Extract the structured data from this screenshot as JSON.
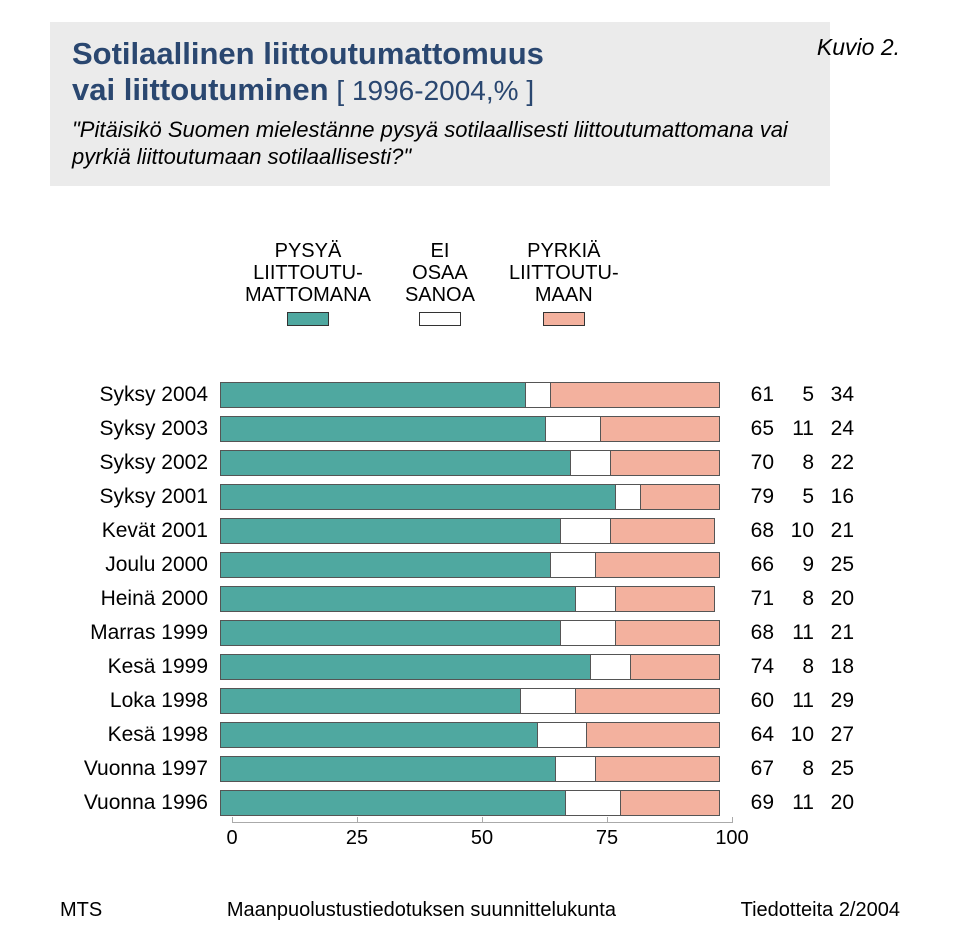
{
  "header": {
    "title_line1": "Sotilaallinen liittoutumattomuus",
    "title_line2_bold": "vai liittoutuminen",
    "title_line2_suffix": " [ 1996-2004,% ]",
    "question": "\"Pitäisikö Suomen mielestänne pysyä sotilaallisesti liittoutumattomana vai pyrkiä liittoutumaan sotilaallisesti?\"",
    "figure_label": "Kuvio 2.",
    "header_bg": "#ebebeb",
    "title_color": "#2a4770"
  },
  "legend": {
    "items": [
      {
        "label": "PYSYÄ\nLIITTOUTU-\nMATTOMANA",
        "color": "#4fa8a0",
        "border": "#333"
      },
      {
        "label": "EI\nOSAA\nSANOA",
        "color": "#ffffff",
        "border": "#333"
      },
      {
        "label": "PYRKIÄ\nLIITTOUTU-\nMAAN",
        "color": "#f3b19e",
        "border": "#333"
      }
    ]
  },
  "chart": {
    "type": "stacked-bar-horizontal",
    "colors": [
      "#4fa8a0",
      "#ffffff",
      "#f3b19e"
    ],
    "segment_border": "#555",
    "xlim": [
      0,
      100
    ],
    "ticks": [
      0,
      25,
      50,
      75,
      100
    ],
    "label_fontsize": 21,
    "rows": [
      {
        "label": "Syksy 2004",
        "values": [
          61,
          5,
          34
        ]
      },
      {
        "label": "Syksy 2003",
        "values": [
          65,
          11,
          24
        ]
      },
      {
        "label": "Syksy 2002",
        "values": [
          70,
          8,
          22
        ]
      },
      {
        "label": "Syksy 2001",
        "values": [
          79,
          5,
          16
        ]
      },
      {
        "label": "Kevät 2001",
        "values": [
          68,
          10,
          21
        ]
      },
      {
        "label": "Joulu 2000",
        "values": [
          66,
          9,
          25
        ]
      },
      {
        "label": "Heinä 2000",
        "values": [
          71,
          8,
          20
        ]
      },
      {
        "label": "Marras 1999",
        "values": [
          68,
          11,
          21
        ]
      },
      {
        "label": "Kesä 1999",
        "values": [
          74,
          8,
          18
        ]
      },
      {
        "label": "Loka 1998",
        "values": [
          60,
          11,
          29
        ]
      },
      {
        "label": "Kesä 1998",
        "values": [
          64,
          10,
          27
        ]
      },
      {
        "label": "Vuonna 1997",
        "values": [
          67,
          8,
          25
        ]
      },
      {
        "label": "Vuonna 1996",
        "values": [
          69,
          11,
          20
        ]
      }
    ]
  },
  "footer": {
    "left": "MTS",
    "center": "Maanpuolustustiedotuksen suunnittelukunta",
    "right": "Tiedotteita 2/2004"
  },
  "page_bg": "#ffffff"
}
